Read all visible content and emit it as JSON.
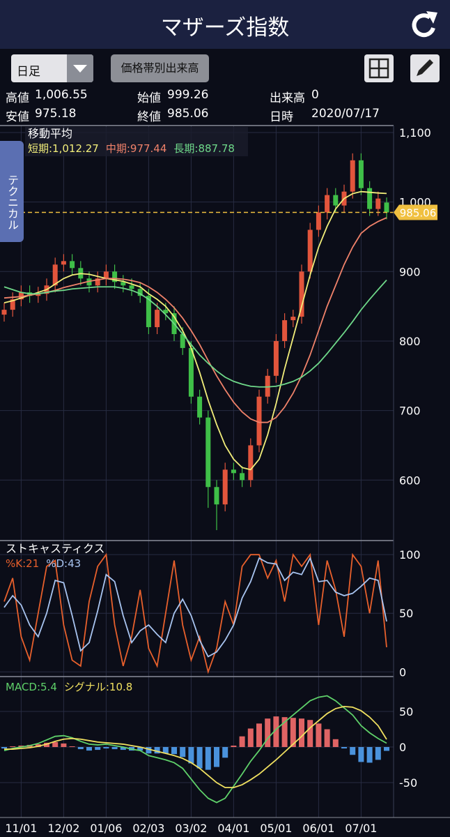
{
  "header": {
    "title": "マザーズ指数"
  },
  "toolbar": {
    "period": "日足",
    "button": "価格帯別出来高"
  },
  "info": [
    {
      "label": "高値",
      "value": "1,006.55"
    },
    {
      "label": "始値",
      "value": "999.26"
    },
    {
      "label": "出来高",
      "value": "0"
    },
    {
      "label": "安値",
      "value": "975.18"
    },
    {
      "label": "終値",
      "value": "985.06"
    },
    {
      "label": "日時",
      "value": "2020/07/17"
    }
  ],
  "side_tab": "テクニカル",
  "chart_data": [
    {
      "type": "candlestick",
      "title": "移動平均",
      "categories": [
        null,
        null,
        "11/01",
        null,
        null,
        null,
        null,
        "12/02",
        null,
        null,
        null,
        null,
        "01/06",
        null,
        null,
        null,
        null,
        "02/03",
        null,
        null,
        null,
        null,
        "03/02",
        null,
        null,
        null,
        null,
        "04/01",
        null,
        null,
        null,
        null,
        "05/01",
        null,
        null,
        null,
        null,
        "06/01",
        null,
        null,
        null,
        null,
        "07/01",
        null,
        null,
        null
      ],
      "open": [
        838,
        845,
        860,
        870,
        865,
        868,
        880,
        910,
        915,
        905,
        890,
        880,
        890,
        900,
        885,
        880,
        875,
        865,
        820,
        845,
        840,
        810,
        790,
        720,
        690,
        590,
        565,
        615,
        610,
        600,
        650,
        720,
        750,
        800,
        830,
        835,
        900,
        960,
        985,
        1010,
        995,
        1015,
        1060,
        1020,
        990,
        999.26
      ],
      "high": [
        855,
        870,
        880,
        880,
        878,
        890,
        920,
        925,
        925,
        915,
        900,
        900,
        910,
        910,
        895,
        890,
        885,
        875,
        855,
        855,
        850,
        820,
        800,
        730,
        700,
        600,
        625,
        625,
        620,
        660,
        730,
        760,
        810,
        840,
        845,
        910,
        970,
        995,
        1020,
        1020,
        1025,
        1070,
        1070,
        1030,
        1015,
        1006.55
      ],
      "low": [
        828,
        835,
        850,
        855,
        855,
        858,
        870,
        900,
        895,
        880,
        870,
        870,
        880,
        875,
        870,
        865,
        855,
        810,
        810,
        830,
        800,
        780,
        710,
        680,
        560,
        528,
        555,
        600,
        590,
        590,
        640,
        710,
        740,
        790,
        820,
        825,
        890,
        950,
        975,
        985,
        985,
        1005,
        1010,
        980,
        980,
        975.18
      ],
      "close": [
        845,
        860,
        870,
        865,
        868,
        880,
        910,
        915,
        905,
        890,
        880,
        890,
        900,
        885,
        880,
        875,
        865,
        820,
        845,
        840,
        810,
        790,
        720,
        690,
        590,
        565,
        615,
        610,
        600,
        650,
        720,
        750,
        800,
        830,
        835,
        900,
        960,
        985,
        1010,
        995,
        1015,
        1060,
        1020,
        990,
        1005,
        985.06
      ],
      "up_color": "#e2553c",
      "down_color": "#3fbf48",
      "series": [
        {
          "name": "短期:1,012.27",
          "color": "#f2ee7a",
          "values": [
            855,
            858,
            862,
            866,
            870,
            874,
            882,
            890,
            895,
            897,
            896,
            893,
            890,
            888,
            886,
            882,
            878,
            868,
            860,
            850,
            835,
            815,
            790,
            755,
            715,
            680,
            650,
            630,
            618,
            615,
            630,
            665,
            710,
            760,
            805,
            850,
            895,
            935,
            965,
            990,
            1005,
            1012,
            1015,
            1014,
            1013,
            1012.27
          ]
        },
        {
          "name": "中期:977.44",
          "color": "#f0826a",
          "values": [
            862,
            863,
            864,
            866,
            868,
            870,
            873,
            877,
            880,
            883,
            886,
            888,
            890,
            890,
            889,
            887,
            884,
            878,
            870,
            860,
            848,
            833,
            815,
            795,
            772,
            750,
            730,
            712,
            698,
            688,
            683,
            683,
            690,
            705,
            725,
            750,
            780,
            815,
            850,
            880,
            910,
            935,
            955,
            965,
            972,
            977.44
          ]
        },
        {
          "name": "長期:887.78",
          "color": "#6fd98a",
          "values": [
            878,
            874,
            870,
            868,
            868,
            870,
            872,
            873,
            875,
            876,
            877,
            878,
            878,
            878,
            876,
            873,
            868,
            860,
            850,
            838,
            825,
            810,
            795,
            780,
            768,
            757,
            748,
            742,
            738,
            735,
            734,
            734,
            735,
            738,
            742,
            748,
            757,
            768,
            782,
            797,
            812,
            828,
            845,
            860,
            874,
            887.78
          ]
        }
      ],
      "current_price": 985.06,
      "current_color": "#f0c040",
      "ylim": [
        513,
        1110
      ],
      "yticks": [
        600,
        700,
        800,
        900,
        {
          "value": 1000,
          "label": "1,000"
        },
        {
          "value": 1100,
          "label": "1,100"
        }
      ],
      "grid": true
    },
    {
      "type": "line",
      "title": "ストキャスティクス",
      "series": [
        {
          "name": "%K:21",
          "color": "#e8602c",
          "values": [
            60,
            80,
            30,
            10,
            50,
            90,
            95,
            40,
            10,
            5,
            60,
            90,
            100,
            40,
            5,
            30,
            70,
            20,
            5,
            50,
            95,
            40,
            10,
            30,
            0,
            20,
            60,
            40,
            90,
            100,
            100,
            80,
            95,
            60,
            100,
            90,
            100,
            40,
            95,
            70,
            30,
            100,
            90,
            50,
            95,
            21
          ]
        },
        {
          "name": "%D:43",
          "color": "#a8c4f0",
          "values": [
            55,
            65,
            57,
            40,
            30,
            50,
            78,
            76,
            48,
            18,
            25,
            52,
            83,
            77,
            48,
            25,
            35,
            40,
            32,
            25,
            50,
            62,
            48,
            27,
            13,
            17,
            27,
            40,
            63,
            77,
            97,
            93,
            92,
            78,
            85,
            83,
            97,
            77,
            78,
            68,
            65,
            67,
            73,
            80,
            78,
            43
          ]
        }
      ],
      "ylim": [
        -4,
        112
      ],
      "yticks": [
        0,
        50,
        100
      ],
      "grid": true
    },
    {
      "type": "line",
      "series": [
        {
          "type": "bar",
          "color": "#e06464",
          "negative_color": "#4a92dc",
          "values": [
            -2,
            1,
            2,
            3,
            4,
            6,
            7,
            5,
            1,
            -3,
            -5,
            -4,
            -2,
            -3,
            -4,
            -5,
            -5,
            -9,
            -9,
            -9,
            -10,
            -14,
            -23,
            -30,
            -32,
            -28,
            -15,
            2,
            15,
            26,
            33,
            40,
            43,
            42,
            41,
            40,
            38,
            33,
            25,
            11,
            -2,
            -11,
            -21,
            -22,
            -18,
            -5.4
          ]
        },
        {
          "name": "MACD:5.4",
          "color": "#5fd16a",
          "values": [
            -5,
            -2,
            0,
            2,
            5,
            10,
            15,
            16,
            13,
            8,
            4,
            3,
            4,
            2,
            0,
            -3,
            -5,
            -12,
            -15,
            -18,
            -22,
            -30,
            -45,
            -60,
            -72,
            -78,
            -72,
            -55,
            -38,
            -20,
            -5,
            12,
            25,
            35,
            45,
            55,
            65,
            70,
            72,
            65,
            55,
            45,
            30,
            20,
            12,
            5.4
          ]
        },
        {
          "name": "シグナル:10.8",
          "color": "#f0e060",
          "values": [
            -3,
            -3,
            -2,
            -1,
            1,
            4,
            8,
            11,
            12,
            11,
            9,
            7,
            6,
            5,
            4,
            2,
            0,
            -3,
            -6,
            -9,
            -12,
            -16,
            -22,
            -30,
            -40,
            -50,
            -57,
            -57,
            -53,
            -46,
            -38,
            -28,
            -18,
            -7,
            4,
            15,
            27,
            37,
            47,
            54,
            57,
            56,
            51,
            42,
            30,
            10.8
          ]
        }
      ],
      "ylim": [
        -99,
        99
      ],
      "yticks": [
        -50,
        0,
        50
      ],
      "grid": true
    }
  ]
}
